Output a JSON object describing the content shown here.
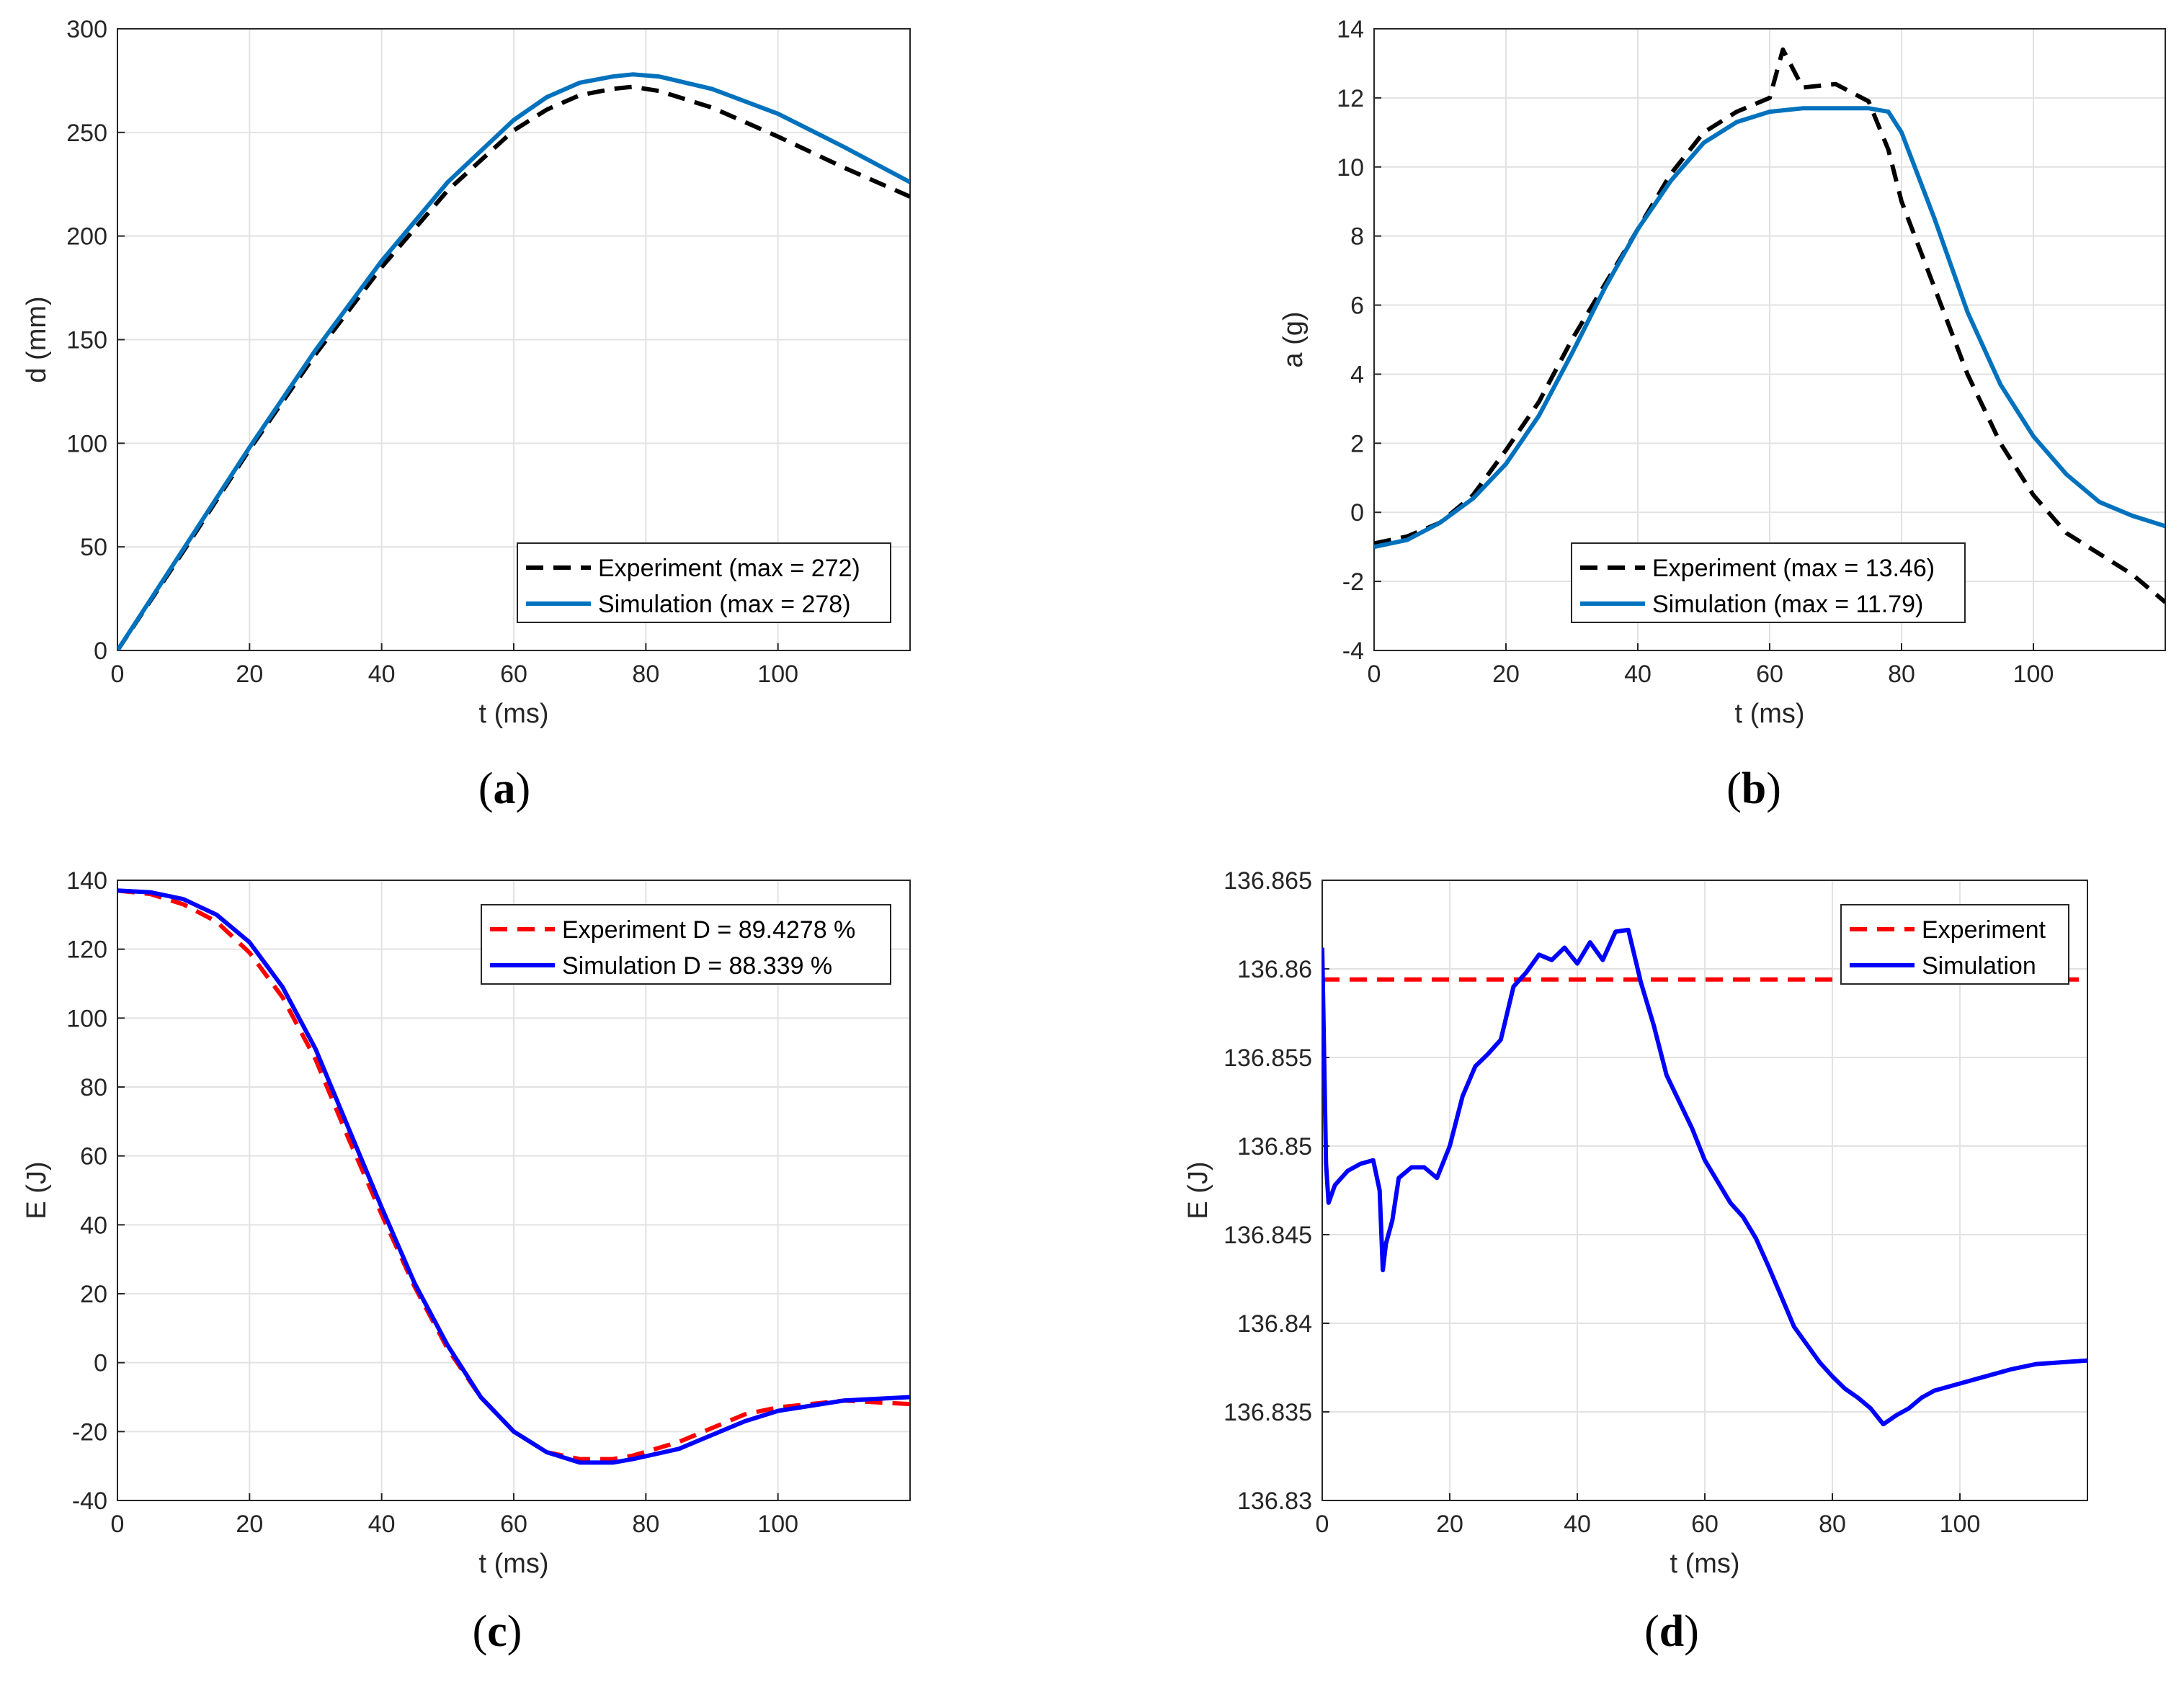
{
  "chart_data": [
    {
      "id": "a",
      "type": "line",
      "caption": "a",
      "xlabel": "t (ms)",
      "ylabel": "d (mm)",
      "xlim": [
        0,
        120
      ],
      "ylim": [
        0,
        300
      ],
      "xticks": [
        0,
        20,
        40,
        60,
        80,
        100
      ],
      "yticks": [
        0,
        50,
        100,
        150,
        200,
        250,
        300
      ],
      "legend": "bottom-right",
      "series": [
        {
          "name": "Experiment (max = 272)",
          "style": "dashed",
          "color": "#000000",
          "x": [
            0,
            10,
            20,
            30,
            40,
            50,
            60,
            65,
            70,
            75,
            78,
            82,
            90,
            100,
            110,
            120
          ],
          "y": [
            0,
            48,
            97,
            143,
            185,
            222,
            251,
            261,
            268,
            271,
            272,
            270,
            262,
            248,
            233,
            219
          ]
        },
        {
          "name": "Simulation (max = 278)",
          "style": "solid",
          "color": "#0072bd",
          "x": [
            0,
            10,
            20,
            30,
            40,
            50,
            60,
            65,
            70,
            75,
            78,
            82,
            90,
            100,
            110,
            120
          ],
          "y": [
            0,
            49,
            98,
            145,
            188,
            226,
            256,
            267,
            274,
            277,
            278,
            277,
            271,
            259,
            243,
            226
          ]
        }
      ]
    },
    {
      "id": "b",
      "type": "line",
      "caption": "b",
      "xlabel": "t (ms)",
      "ylabel": "a (g)",
      "xlim": [
        0,
        120
      ],
      "ylim": [
        -4,
        14
      ],
      "xticks": [
        0,
        20,
        40,
        60,
        80,
        100
      ],
      "yticks": [
        -4,
        -2,
        0,
        2,
        4,
        6,
        8,
        10,
        12,
        14
      ],
      "legend": "bottom-right",
      "series": [
        {
          "name": "Experiment (max = 13.46)",
          "style": "dashed",
          "color": "#000000",
          "x": [
            0,
            5,
            10,
            15,
            20,
            25,
            30,
            35,
            40,
            45,
            50,
            55,
            60,
            62,
            65,
            70,
            75,
            78,
            80,
            85,
            90,
            95,
            100,
            105,
            110,
            115,
            120
          ],
          "y": [
            -0.9,
            -0.7,
            -0.3,
            0.5,
            1.8,
            3.2,
            5.0,
            6.6,
            8.2,
            9.8,
            11.0,
            11.6,
            12.0,
            13.4,
            12.3,
            12.4,
            11.9,
            10.5,
            9.0,
            6.5,
            4.0,
            2.0,
            0.5,
            -0.6,
            -1.2,
            -1.8,
            -2.6
          ]
        },
        {
          "name": "Simulation (max = 11.79)",
          "style": "solid",
          "color": "#0072bd",
          "x": [
            0,
            5,
            10,
            15,
            20,
            25,
            30,
            35,
            40,
            45,
            50,
            55,
            60,
            65,
            70,
            75,
            78,
            80,
            85,
            90,
            95,
            100,
            105,
            110,
            115,
            120
          ],
          "y": [
            -1.0,
            -0.8,
            -0.3,
            0.4,
            1.4,
            2.8,
            4.6,
            6.5,
            8.2,
            9.6,
            10.7,
            11.3,
            11.6,
            11.7,
            11.7,
            11.7,
            11.6,
            11.0,
            8.5,
            5.8,
            3.7,
            2.2,
            1.1,
            0.3,
            -0.1,
            -0.4
          ]
        }
      ]
    },
    {
      "id": "c",
      "type": "line",
      "caption": "c",
      "xlabel": "t (ms)",
      "ylabel": "E (J)",
      "xlim": [
        0,
        120
      ],
      "ylim": [
        -40,
        140
      ],
      "xticks": [
        0,
        20,
        40,
        60,
        80,
        100
      ],
      "yticks": [
        -40,
        -20,
        0,
        20,
        40,
        60,
        80,
        100,
        120,
        140
      ],
      "legend": "top-right",
      "series": [
        {
          "name": "Experiment D = 89.4278 %",
          "style": "dashed",
          "color": "#ff0000",
          "x": [
            0,
            5,
            10,
            15,
            20,
            25,
            30,
            35,
            40,
            45,
            50,
            55,
            60,
            65,
            70,
            75,
            78,
            85,
            90,
            95,
            100,
            110,
            120
          ],
          "y": [
            137,
            136,
            133,
            128,
            119,
            106,
            88,
            65,
            43,
            22,
            4,
            -10,
            -20,
            -26,
            -28,
            -28,
            -27,
            -23,
            -19,
            -15,
            -13,
            -11,
            -12
          ]
        },
        {
          "name": "Simulation D = 88.339 %",
          "style": "solid",
          "color": "#0000ff",
          "x": [
            0,
            5,
            10,
            15,
            20,
            25,
            30,
            35,
            40,
            45,
            50,
            55,
            60,
            65,
            70,
            75,
            78,
            85,
            90,
            95,
            100,
            110,
            120
          ],
          "y": [
            137,
            136.5,
            134.5,
            130,
            122,
            109,
            91,
            68,
            45,
            23,
            5,
            -10,
            -20,
            -26,
            -29,
            -29,
            -28,
            -25,
            -21,
            -17,
            -14,
            -11,
            -10
          ]
        }
      ]
    },
    {
      "id": "d",
      "type": "line",
      "caption": "d",
      "xlabel": "t (ms)",
      "ylabel": "E (J)",
      "xlim": [
        0,
        120
      ],
      "ylim": [
        136.83,
        136.865
      ],
      "xticks": [
        0,
        20,
        40,
        60,
        80,
        100
      ],
      "yticks": [
        136.83,
        136.835,
        136.84,
        136.845,
        136.85,
        136.855,
        136.86,
        136.865
      ],
      "yticklabels": [
        "136.83",
        "136.835",
        "136.84",
        "136.845",
        "136.85",
        "136.855",
        "136.86",
        "136.865"
      ],
      "legend": "top-right",
      "series": [
        {
          "name": "Experiment",
          "style": "dashed",
          "color": "#ff0000",
          "x": [
            0,
            120
          ],
          "y": [
            136.8594,
            136.8594
          ]
        },
        {
          "name": "Simulation",
          "style": "solid",
          "color": "#0000ff",
          "x": [
            0,
            0.3,
            0.6,
            1,
            2,
            4,
            6,
            8,
            9,
            9.5,
            10,
            11,
            12,
            14,
            16,
            18,
            20,
            22,
            24,
            26,
            28,
            30,
            32,
            34,
            36,
            38,
            40,
            42,
            44,
            46,
            48,
            50,
            52,
            54,
            56,
            58,
            60,
            62,
            64,
            66,
            68,
            70,
            72,
            74,
            76,
            78,
            80,
            82,
            84,
            86,
            88,
            90,
            92,
            94,
            96,
            100,
            104,
            108,
            112,
            116,
            120
          ],
          "y": [
            136.8612,
            136.855,
            136.849,
            136.8468,
            136.8478,
            136.8486,
            136.849,
            136.8492,
            136.8475,
            136.843,
            136.8445,
            136.8458,
            136.8482,
            136.8488,
            136.8488,
            136.8482,
            136.85,
            136.8528,
            136.8545,
            136.8552,
            136.856,
            136.859,
            136.8598,
            136.8608,
            136.8605,
            136.8612,
            136.8603,
            136.8615,
            136.8605,
            136.8621,
            136.8622,
            136.8592,
            136.8568,
            136.854,
            136.8525,
            136.851,
            136.8492,
            136.848,
            136.8468,
            136.846,
            136.8448,
            136.8432,
            136.8415,
            136.8398,
            136.8388,
            136.8378,
            136.837,
            136.8363,
            136.8358,
            136.8352,
            136.8343,
            136.8348,
            136.8352,
            136.8358,
            136.8362,
            136.8366,
            136.837,
            136.8374,
            136.8377,
            136.8378,
            136.8379
          ]
        }
      ]
    }
  ]
}
